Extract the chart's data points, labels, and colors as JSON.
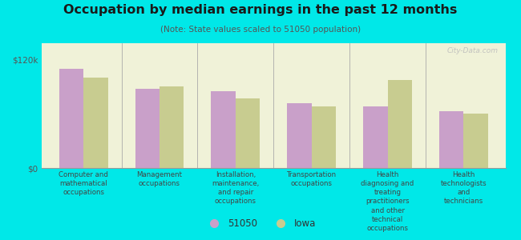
{
  "title": "Occupation by median earnings in the past 12 months",
  "subtitle": "(Note: State values scaled to 51050 population)",
  "background_color": "#00e8e8",
  "plot_bg_color": "#f0f2d8",
  "categories": [
    "Computer and\nmathematical\noccupations",
    "Management\noccupations",
    "Installation,\nmaintenance,\nand repair\noccupations",
    "Transportation\noccupations",
    "Health\ndiagnosing and\ntreating\npractitioners\nand other\ntechnical\noccupations",
    "Health\ntechnologists\nand\ntechnicians"
  ],
  "values_51050": [
    110000,
    88000,
    85000,
    72000,
    68000,
    63000
  ],
  "values_iowa": [
    100000,
    90000,
    77000,
    68000,
    97000,
    60000
  ],
  "color_51050": "#c9a0c9",
  "color_iowa": "#c8cc90",
  "yticks": [
    0,
    120000
  ],
  "ytick_labels": [
    "$0",
    "$120k"
  ],
  "ylim": [
    0,
    138000
  ],
  "legend_labels": [
    "51050",
    "Iowa"
  ],
  "watermark": "City-Data.com"
}
